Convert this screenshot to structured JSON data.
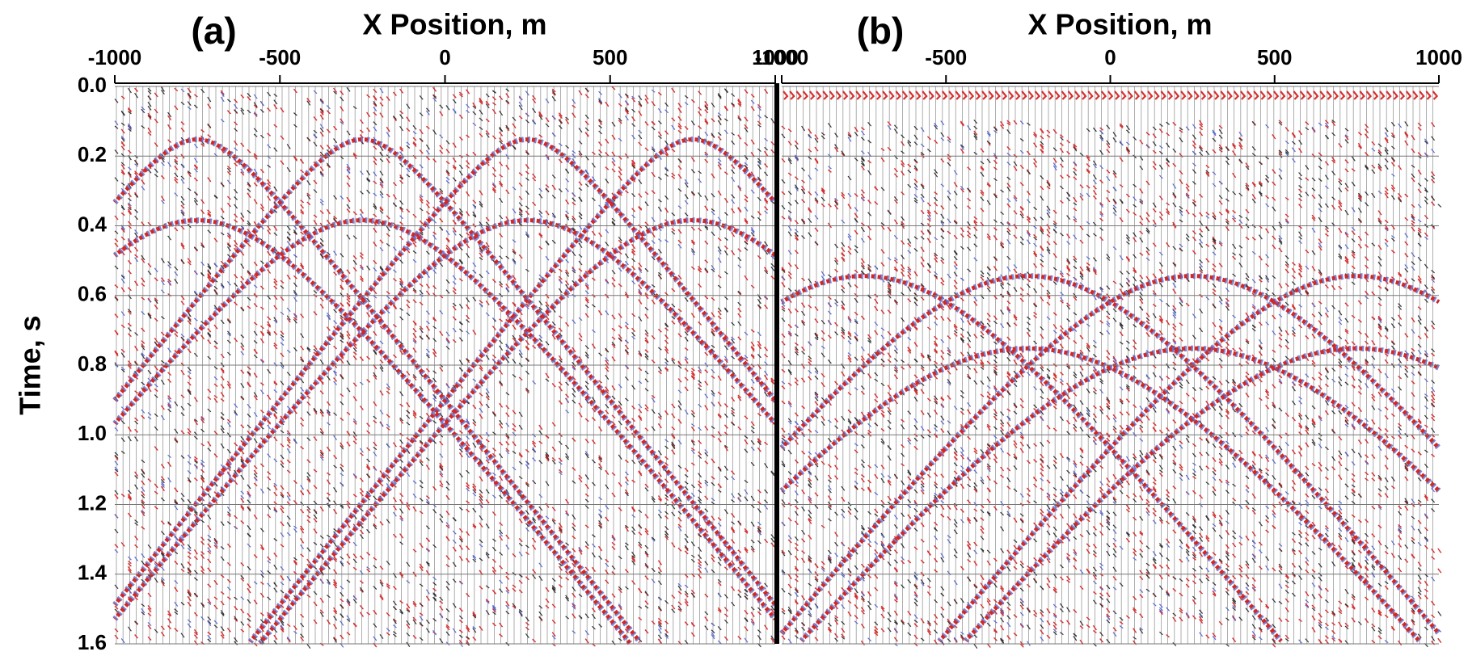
{
  "chart_data": [
    {
      "type": "seismic",
      "title": "(a)",
      "xlabel": "X Position, m",
      "ylabel": "Time, s",
      "xlim": [
        -1000,
        1000
      ],
      "xticks": [
        -1000,
        -500,
        0,
        500,
        1000
      ],
      "ylim": [
        0,
        1.6
      ],
      "yticks": [
        {
          "value": 0,
          "label": "0.0"
        },
        0.2,
        0.4,
        0.6,
        0.8,
        {
          "value": 1,
          "label": "1.0"
        },
        1.2,
        1.4,
        1.6
      ],
      "grid": true
    },
    {
      "type": "seismic",
      "title": "(b)",
      "xlabel": "X Position, m",
      "xlim": [
        -1000,
        1000
      ],
      "xticks": [
        -1000,
        -500,
        0,
        500,
        1000
      ],
      "ylim": [
        0,
        1.6
      ],
      "yticks": [
        {
          "value": 0,
          "label": "0.0"
        },
        0.2,
        0.4,
        0.6,
        0.8,
        {
          "value": 1,
          "label": "1.0"
        },
        1.2,
        1.4,
        1.6
      ],
      "grid": true
    }
  ]
}
